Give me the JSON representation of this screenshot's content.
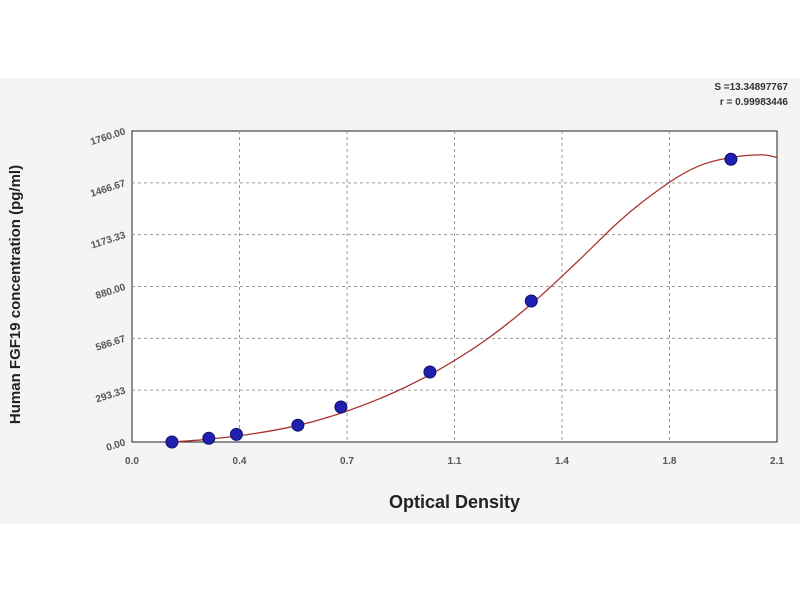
{
  "chart_data": {
    "type": "scatter",
    "title": "",
    "xlabel": "Optical Density",
    "ylabel": "Human FGF19 concentration (pg/ml)",
    "xlim": [
      0.0,
      2.1
    ],
    "ylim": [
      0.0,
      1760.0
    ],
    "x_ticks": [
      "0.0",
      "0.4",
      "0.7",
      "1.1",
      "1.4",
      "1.8",
      "2.1"
    ],
    "x_tick_values": [
      0.0,
      0.35,
      0.7,
      1.05,
      1.4,
      1.75,
      2.1
    ],
    "y_ticks": [
      "0.00",
      "293.33",
      "586.67",
      "880.00",
      "1173.33",
      "1466.67",
      "1760.00"
    ],
    "y_tick_values": [
      0,
      293.33,
      586.67,
      880.0,
      1173.33,
      1466.67,
      1760.0
    ],
    "grid": true,
    "series": [
      {
        "points": [
          {
            "x": 0.13,
            "y": 0
          },
          {
            "x": 0.25,
            "y": 21
          },
          {
            "x": 0.34,
            "y": 43
          },
          {
            "x": 0.54,
            "y": 95
          },
          {
            "x": 0.68,
            "y": 198
          },
          {
            "x": 0.97,
            "y": 396
          },
          {
            "x": 1.3,
            "y": 798
          },
          {
            "x": 1.95,
            "y": 1600
          }
        ],
        "color": "#2020b0"
      }
    ],
    "fit_curve": {
      "color": "#a83232",
      "points": [
        {
          "x": 0.13,
          "y": 0
        },
        {
          "x": 0.25,
          "y": 16
        },
        {
          "x": 0.4,
          "y": 48
        },
        {
          "x": 0.55,
          "y": 98
        },
        {
          "x": 0.7,
          "y": 175
        },
        {
          "x": 0.85,
          "y": 278
        },
        {
          "x": 1.0,
          "y": 410
        },
        {
          "x": 1.15,
          "y": 575
        },
        {
          "x": 1.3,
          "y": 780
        },
        {
          "x": 1.45,
          "y": 1020
        },
        {
          "x": 1.6,
          "y": 1270
        },
        {
          "x": 1.75,
          "y": 1470
        },
        {
          "x": 1.85,
          "y": 1565
        },
        {
          "x": 1.95,
          "y": 1610
        },
        {
          "x": 2.05,
          "y": 1625
        },
        {
          "x": 2.1,
          "y": 1610
        }
      ]
    },
    "stats": {
      "s_text": "S =13.34897767",
      "r_text": "r = 0.99983446"
    }
  }
}
